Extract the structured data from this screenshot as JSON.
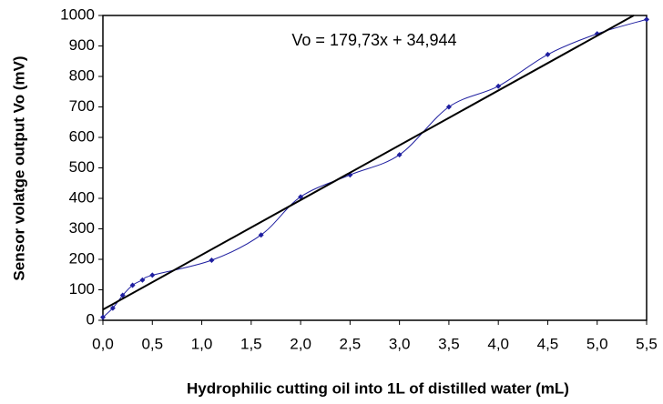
{
  "chart_data": {
    "type": "line",
    "xlabel": "Hydrophilic cutting oil into 1L of distilled water (mL)",
    "ylabel": "Sensor volatge output Vo (mV)",
    "annotation": "Vo = 179,73x + 34,944",
    "x": [
      0,
      0.1,
      0.2,
      0.3,
      0.4,
      0.5,
      1.1,
      1.6,
      2.0,
      2.5,
      3.0,
      3.5,
      4.0,
      4.5,
      5.0,
      5.5
    ],
    "series": [
      {
        "color": "#1f1fa0",
        "smooth": true,
        "values": [
          10,
          40,
          82,
          115,
          132,
          148,
          197,
          280,
          405,
          477,
          543,
          700,
          768,
          872,
          940,
          987
        ]
      }
    ],
    "trendline": {
      "slope": 179.73,
      "intercept": 34.944,
      "color": "#000000"
    },
    "xlim": [
      0,
      5.5
    ],
    "xticks": [
      {
        "value": 0,
        "label": "0,0"
      },
      {
        "value": 0.5,
        "label": "0,5"
      },
      {
        "value": 1,
        "label": "1,0"
      },
      {
        "value": 1.5,
        "label": "1,5"
      },
      {
        "value": 2,
        "label": "2,0"
      },
      {
        "value": 2.5,
        "label": "2,5"
      },
      {
        "value": 3,
        "label": "3,0"
      },
      {
        "value": 3.5,
        "label": "3,5"
      },
      {
        "value": 4,
        "label": "4,0"
      },
      {
        "value": 4.5,
        "label": "4,5"
      },
      {
        "value": 5,
        "label": "5,0"
      },
      {
        "value": 5.5,
        "label": "5,5"
      }
    ],
    "ylim": [
      0,
      1000
    ],
    "yticks": [
      0,
      100,
      200,
      300,
      400,
      500,
      600,
      700,
      800,
      900,
      1000
    ]
  }
}
